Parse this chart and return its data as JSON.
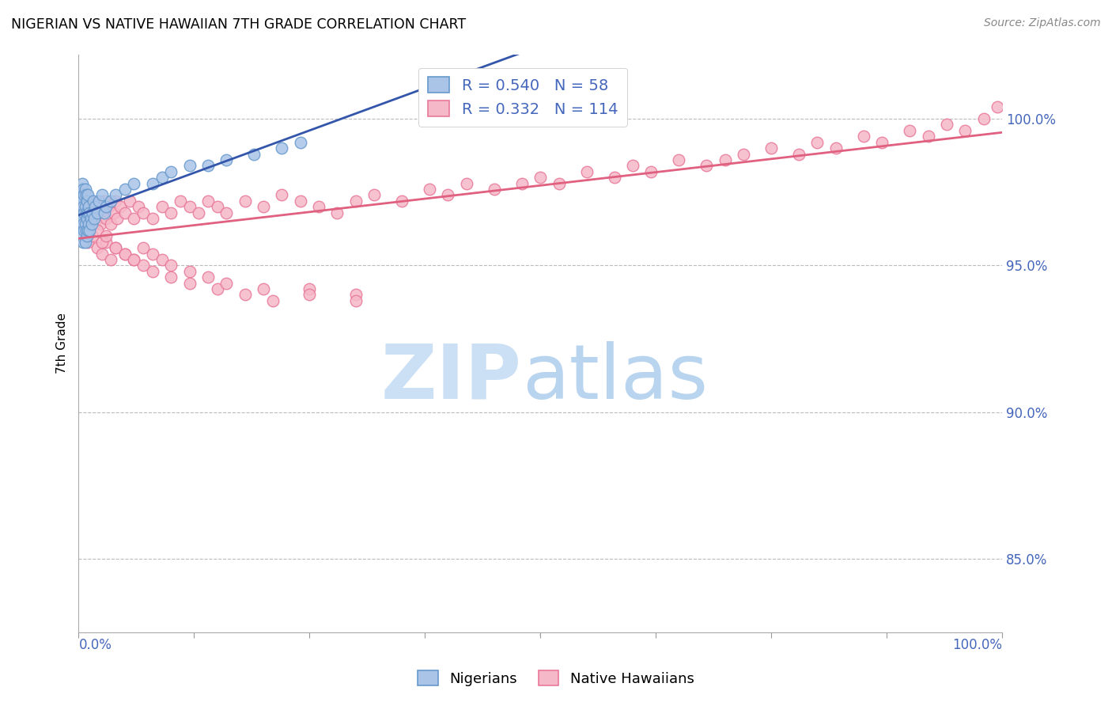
{
  "title": "NIGERIAN VS NATIVE HAWAIIAN 7TH GRADE CORRELATION CHART",
  "source": "Source: ZipAtlas.com",
  "ylabel": "7th Grade",
  "ytick_labels": [
    "85.0%",
    "90.0%",
    "95.0%",
    "100.0%"
  ],
  "ytick_values": [
    0.85,
    0.9,
    0.95,
    1.0
  ],
  "xlim": [
    0.0,
    1.0
  ],
  "ylim": [
    0.825,
    1.022
  ],
  "nigerian_color": "#aac4e8",
  "hawaiian_color": "#f5b8c8",
  "nigerian_edge_color": "#6699cc",
  "hawaiian_edge_color": "#e87898",
  "nigerian_line_color": "#3355aa",
  "hawaiian_line_color": "#e06080",
  "legend_R_nigerian": "0.540",
  "legend_N_nigerian": "58",
  "legend_R_hawaiian": "0.332",
  "legend_N_hawaiian": "114",
  "legend_label_nigerian": "Nigerians",
  "legend_label_hawaiian": "Native Hawaiians",
  "watermark_zip_color": "#cce0f5",
  "watermark_atlas_color": "#b8d4ee",
  "grid_color": "#bbbbbb",
  "nigerian_x": [
    0.001,
    0.002,
    0.002,
    0.003,
    0.003,
    0.003,
    0.004,
    0.004,
    0.004,
    0.004,
    0.005,
    0.005,
    0.005,
    0.005,
    0.006,
    0.006,
    0.006,
    0.007,
    0.007,
    0.007,
    0.007,
    0.008,
    0.008,
    0.008,
    0.009,
    0.009,
    0.009,
    0.01,
    0.01,
    0.01,
    0.011,
    0.011,
    0.012,
    0.012,
    0.013,
    0.014,
    0.015,
    0.016,
    0.017,
    0.018,
    0.02,
    0.022,
    0.025,
    0.028,
    0.03,
    0.035,
    0.04,
    0.05,
    0.06,
    0.08,
    0.09,
    0.1,
    0.12,
    0.14,
    0.16,
    0.19,
    0.22,
    0.24
  ],
  "nigerian_y": [
    0.968,
    0.972,
    0.966,
    0.974,
    0.97,
    0.964,
    0.978,
    0.972,
    0.966,
    0.96,
    0.976,
    0.97,
    0.964,
    0.958,
    0.974,
    0.968,
    0.962,
    0.976,
    0.97,
    0.964,
    0.958,
    0.974,
    0.968,
    0.962,
    0.972,
    0.966,
    0.96,
    0.974,
    0.968,
    0.962,
    0.97,
    0.964,
    0.968,
    0.962,
    0.966,
    0.964,
    0.968,
    0.972,
    0.966,
    0.97,
    0.968,
    0.972,
    0.974,
    0.968,
    0.97,
    0.972,
    0.974,
    0.976,
    0.978,
    0.978,
    0.98,
    0.982,
    0.984,
    0.984,
    0.986,
    0.988,
    0.99,
    0.992
  ],
  "hawaiian_x": [
    0.002,
    0.003,
    0.004,
    0.005,
    0.005,
    0.006,
    0.007,
    0.008,
    0.009,
    0.01,
    0.011,
    0.012,
    0.013,
    0.014,
    0.015,
    0.016,
    0.017,
    0.018,
    0.02,
    0.022,
    0.024,
    0.026,
    0.028,
    0.03,
    0.032,
    0.035,
    0.038,
    0.04,
    0.042,
    0.045,
    0.05,
    0.055,
    0.06,
    0.065,
    0.07,
    0.08,
    0.09,
    0.1,
    0.11,
    0.12,
    0.13,
    0.14,
    0.15,
    0.16,
    0.18,
    0.2,
    0.22,
    0.24,
    0.26,
    0.28,
    0.3,
    0.32,
    0.35,
    0.38,
    0.4,
    0.42,
    0.45,
    0.48,
    0.5,
    0.52,
    0.55,
    0.58,
    0.6,
    0.62,
    0.65,
    0.68,
    0.7,
    0.72,
    0.75,
    0.78,
    0.8,
    0.82,
    0.85,
    0.87,
    0.9,
    0.92,
    0.94,
    0.96,
    0.98,
    0.995,
    0.01,
    0.015,
    0.02,
    0.025,
    0.03,
    0.035,
    0.04,
    0.05,
    0.06,
    0.07,
    0.08,
    0.1,
    0.12,
    0.15,
    0.18,
    0.21,
    0.25,
    0.3,
    0.02,
    0.025,
    0.03,
    0.04,
    0.05,
    0.06,
    0.07,
    0.08,
    0.09,
    0.1,
    0.12,
    0.14,
    0.16,
    0.2,
    0.25,
    0.3
  ],
  "hawaiian_y": [
    0.97,
    0.974,
    0.968,
    0.972,
    0.966,
    0.97,
    0.964,
    0.968,
    0.972,
    0.966,
    0.97,
    0.964,
    0.968,
    0.972,
    0.966,
    0.97,
    0.964,
    0.968,
    0.966,
    0.97,
    0.964,
    0.968,
    0.972,
    0.966,
    0.97,
    0.964,
    0.968,
    0.972,
    0.966,
    0.97,
    0.968,
    0.972,
    0.966,
    0.97,
    0.968,
    0.966,
    0.97,
    0.968,
    0.972,
    0.97,
    0.968,
    0.972,
    0.97,
    0.968,
    0.972,
    0.97,
    0.974,
    0.972,
    0.97,
    0.968,
    0.972,
    0.974,
    0.972,
    0.976,
    0.974,
    0.978,
    0.976,
    0.978,
    0.98,
    0.978,
    0.982,
    0.98,
    0.984,
    0.982,
    0.986,
    0.984,
    0.986,
    0.988,
    0.99,
    0.988,
    0.992,
    0.99,
    0.994,
    0.992,
    0.996,
    0.994,
    0.998,
    0.996,
    1.0,
    1.004,
    0.958,
    0.96,
    0.956,
    0.954,
    0.958,
    0.952,
    0.956,
    0.954,
    0.952,
    0.95,
    0.948,
    0.946,
    0.944,
    0.942,
    0.94,
    0.938,
    0.942,
    0.94,
    0.962,
    0.958,
    0.96,
    0.956,
    0.954,
    0.952,
    0.956,
    0.954,
    0.952,
    0.95,
    0.948,
    0.946,
    0.944,
    0.942,
    0.94,
    0.938
  ]
}
